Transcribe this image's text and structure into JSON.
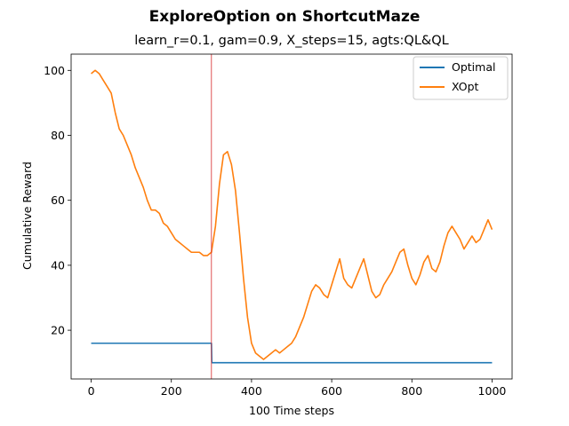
{
  "chart_data": {
    "type": "line",
    "title": "ExploreOption on ShortcutMaze",
    "subtitle": "learn_r=0.1, gam=0.9, X_steps=15, agts:QL&QL",
    "xlabel": "100 Time steps",
    "ylabel": "Cumulative Reward",
    "xlim": [
      -50,
      1050
    ],
    "ylim": [
      5,
      105
    ],
    "xticks": [
      0,
      200,
      400,
      600,
      800,
      1000
    ],
    "yticks": [
      20,
      40,
      60,
      80,
      100
    ],
    "grid": false,
    "legend": "upper-right",
    "vline": {
      "x": 300,
      "color": "#d62728"
    },
    "series": [
      {
        "name": "Optimal",
        "color": "#1f77b4",
        "x": [
          0,
          300,
          301,
          1000
        ],
        "y": [
          16,
          16,
          10,
          10
        ]
      },
      {
        "name": "XOpt",
        "color": "#ff7f0e",
        "x": [
          0,
          10,
          20,
          30,
          40,
          50,
          60,
          70,
          80,
          90,
          100,
          110,
          120,
          130,
          140,
          150,
          160,
          170,
          180,
          190,
          200,
          210,
          220,
          230,
          240,
          250,
          260,
          270,
          280,
          290,
          300,
          310,
          320,
          330,
          340,
          350,
          360,
          370,
          380,
          390,
          400,
          410,
          420,
          430,
          440,
          450,
          460,
          470,
          480,
          490,
          500,
          510,
          520,
          530,
          540,
          550,
          560,
          570,
          580,
          590,
          600,
          610,
          620,
          630,
          640,
          650,
          660,
          670,
          680,
          690,
          700,
          710,
          720,
          730,
          740,
          750,
          760,
          770,
          780,
          790,
          800,
          810,
          820,
          830,
          840,
          850,
          860,
          870,
          880,
          890,
          900,
          910,
          920,
          930,
          940,
          950,
          960,
          970,
          980,
          990,
          1000
        ],
        "y": [
          99,
          100,
          99,
          97,
          95,
          93,
          87,
          82,
          80,
          77,
          74,
          70,
          67,
          64,
          60,
          57,
          57,
          56,
          53,
          52,
          50,
          48,
          47,
          46,
          45,
          44,
          44,
          44,
          43,
          43,
          44,
          52,
          65,
          74,
          75,
          71,
          63,
          50,
          36,
          24,
          16,
          13,
          12,
          11,
          12,
          13,
          14,
          13,
          14,
          15,
          16,
          18,
          21,
          24,
          28,
          32,
          34,
          33,
          31,
          30,
          34,
          38,
          42,
          36,
          34,
          33,
          36,
          39,
          42,
          37,
          32,
          30,
          31,
          34,
          36,
          38,
          41,
          44,
          45,
          40,
          36,
          34,
          37,
          41,
          43,
          39,
          38,
          41,
          46,
          50,
          52,
          50,
          48,
          45,
          47,
          49,
          47,
          48,
          51,
          54,
          51
        ]
      }
    ]
  }
}
